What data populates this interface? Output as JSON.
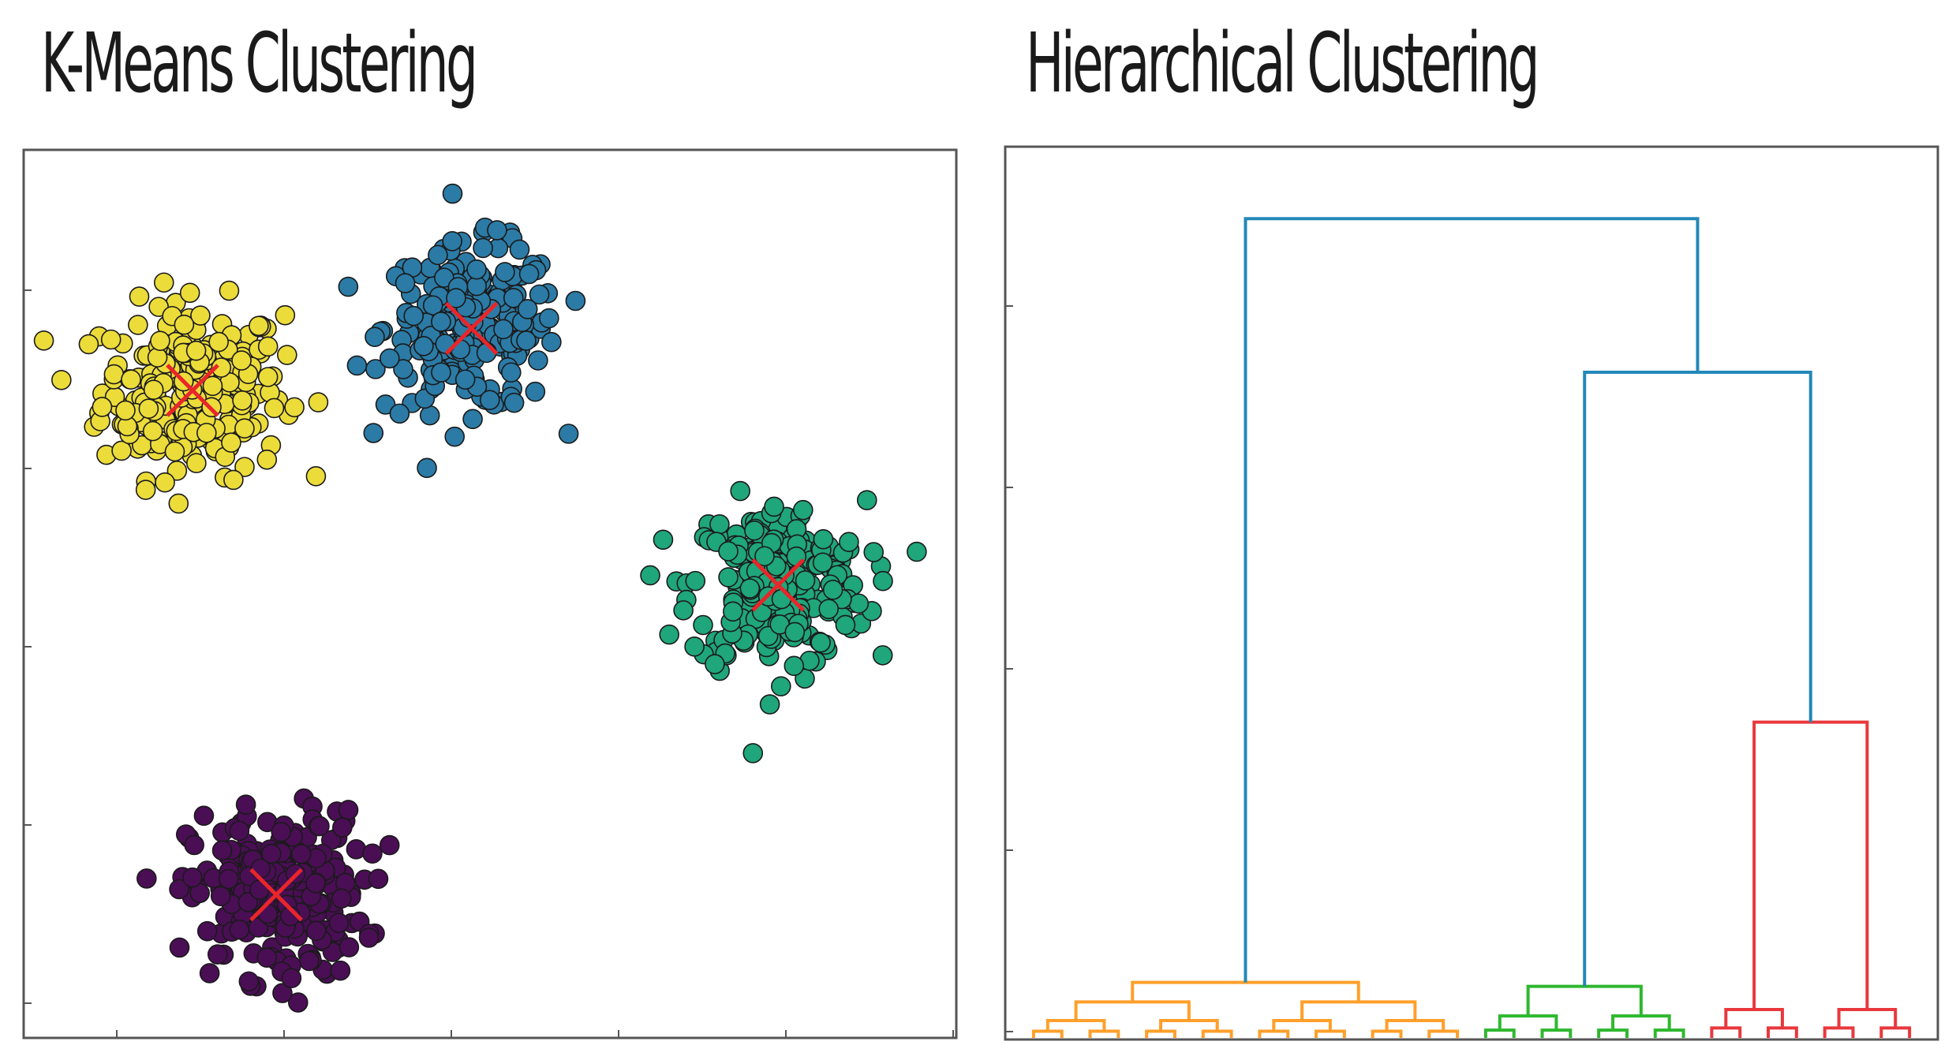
{
  "titles": {
    "kmeans": "K-Means Clustering",
    "hierarchical": "Hierarchical Clustering"
  },
  "chart_data": [
    {
      "type": "scatter",
      "title": "K-Means Clustering",
      "xlabel": "",
      "ylabel": "",
      "xlim": [
        0,
        100
      ],
      "ylim": [
        0,
        100
      ],
      "clusters": [
        {
          "color": "#ecdc3a",
          "center": [
            18,
            73
          ],
          "spread": 6.5,
          "count": 260
        },
        {
          "color": "#2b7ba6",
          "center": [
            48,
            80
          ],
          "spread": 6.2,
          "count": 240
        },
        {
          "color": "#1fa67a",
          "center": [
            81,
            51
          ],
          "spread": 6.3,
          "count": 250
        },
        {
          "color": "#4a0e55",
          "center": [
            27,
            16
          ],
          "spread": 6.2,
          "count": 250
        }
      ],
      "centroids": [
        {
          "x": 18,
          "y": 73
        },
        {
          "x": 48,
          "y": 80
        },
        {
          "x": 81,
          "y": 51
        },
        {
          "x": 27,
          "y": 16
        }
      ],
      "centroid_color": "#e8262a",
      "grid": false
    },
    {
      "type": "dendrogram",
      "title": "Hierarchical Clustering",
      "xlabel": "",
      "ylabel": "",
      "ylim": [
        0,
        100
      ],
      "link_color": "#2388b8",
      "clusters": [
        {
          "color": "#ff9f2a",
          "leaves": 16,
          "height": 6.5
        },
        {
          "color": "#2eb82e",
          "leaves": 8,
          "height": 6.2
        },
        {
          "color": "#e8383c",
          "leaves": 8,
          "height": 37
        }
      ],
      "merges": [
        {
          "left": "green",
          "right": "red",
          "height": 78
        },
        {
          "left": "orange",
          "right": "green+red",
          "height": 96
        }
      ],
      "grid": false
    }
  ]
}
